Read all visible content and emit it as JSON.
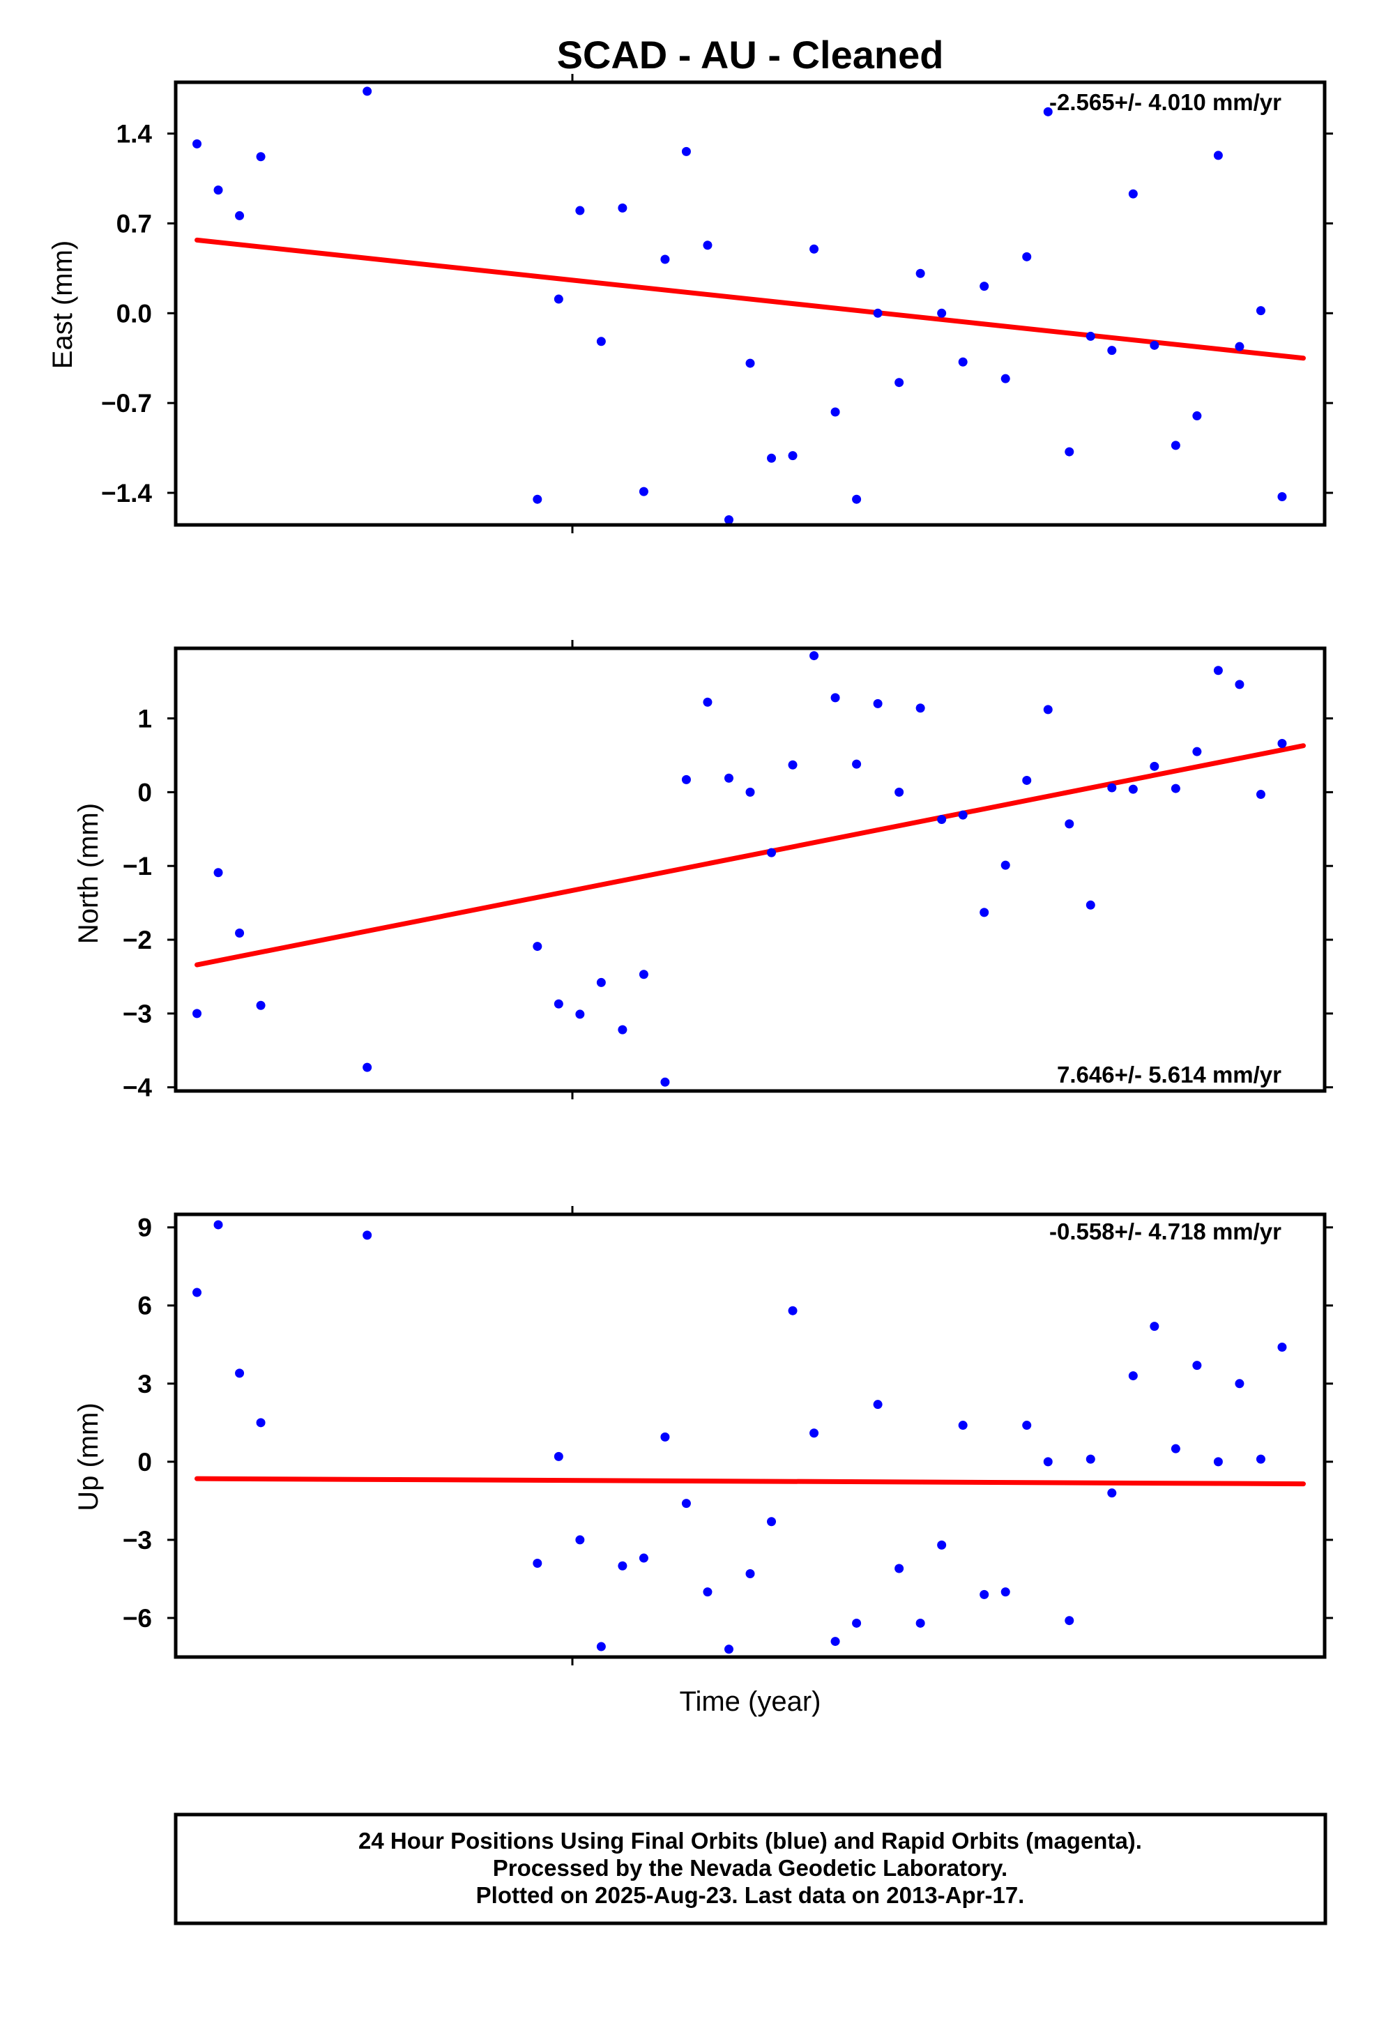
{
  "title": "SCAD  - AU - Cleaned",
  "xlabel": "Time (year)",
  "footer": {
    "line1": "24 Hour Positions Using Final Orbits (blue) and Rapid Orbits (magenta).",
    "line2": "Processed by the Nevada Geodetic Laboratory.",
    "line3": "Plotted on 2025-Aug-23. Last data on 2013-Apr-17."
  },
  "colors": {
    "points": "#0000ff",
    "trend": "#ff0000",
    "frame": "#000000"
  },
  "chart_data": [
    {
      "type": "scatter",
      "ylabel": "East (mm)",
      "rate_text": "-2.565+/- 4.010 mm/yr",
      "rate_position": "top-right",
      "ylim": [
        -1.65,
        1.8
      ],
      "yticks": [
        -1.4,
        -0.7,
        0.0,
        0.7,
        1.4
      ],
      "ytick_labels": [
        "−1.4",
        "−0.7",
        "0.0",
        "0.7",
        "1.4"
      ],
      "x": [
        1,
        2,
        3,
        4,
        9,
        17,
        18,
        19,
        20,
        21,
        22,
        23,
        24,
        25,
        26,
        27,
        28,
        29,
        30,
        31,
        32,
        33,
        34,
        35,
        36,
        37,
        38,
        39,
        40,
        41,
        42,
        43,
        44,
        45,
        46,
        47,
        48,
        49,
        50,
        51,
        52,
        53
      ],
      "values": [
        1.32,
        0.96,
        0.76,
        1.22,
        1.73,
        -1.45,
        0.11,
        0.8,
        -0.22,
        0.82,
        -1.39,
        0.42,
        1.26,
        0.53,
        -1.61,
        -0.39,
        -1.13,
        -1.11,
        0.5,
        -0.77,
        -1.45,
        0.0,
        -0.54,
        0.31,
        0.0,
        -0.38,
        0.21,
        -0.51,
        0.44,
        1.57,
        -1.08,
        -0.18,
        -0.29,
        0.93,
        -0.25,
        -1.03,
        -0.8,
        1.23,
        -0.26,
        0.02,
        -1.43,
        null
      ],
      "trend": {
        "x": [
          1,
          53
        ],
        "values": [
          0.57,
          -0.35
        ]
      }
    },
    {
      "type": "scatter",
      "ylabel": "North (mm)",
      "rate_text": "7.646+/- 5.614 mm/yr",
      "rate_position": "bottom-right",
      "ylim": [
        -4.05,
        1.95
      ],
      "yticks": [
        -4,
        -3,
        -2,
        -1,
        0,
        1
      ],
      "ytick_labels": [
        "−4",
        "−3",
        "−2",
        "−1",
        "0",
        "1"
      ],
      "x": [
        1,
        2,
        3,
        4,
        9,
        17,
        18,
        19,
        20,
        21,
        22,
        23,
        24,
        25,
        26,
        27,
        28,
        29,
        30,
        31,
        32,
        33,
        34,
        35,
        36,
        37,
        38,
        39,
        40,
        41,
        42,
        43,
        44,
        45,
        46,
        47,
        48,
        49,
        50,
        51,
        52
      ],
      "values": [
        -3.0,
        -1.09,
        -1.91,
        -2.89,
        -3.73,
        -2.09,
        -2.87,
        -3.01,
        -2.58,
        -3.22,
        -2.47,
        -3.93,
        0.17,
        1.22,
        0.19,
        0.0,
        -0.82,
        0.37,
        1.85,
        1.28,
        0.38,
        1.2,
        0.0,
        1.14,
        -0.37,
        -0.31,
        -1.63,
        -0.99,
        0.16,
        1.12,
        -0.43,
        -1.53,
        0.06,
        0.04,
        0.35,
        0.05,
        0.55,
        1.65,
        1.46,
        -0.03,
        0.66
      ],
      "trend": {
        "x": [
          1,
          53
        ],
        "values": [
          -2.34,
          0.63
        ]
      }
    },
    {
      "type": "scatter",
      "ylabel": "Up (mm)",
      "rate_text": "-0.558+/- 4.718 mm/yr",
      "rate_position": "top-right",
      "ylim": [
        -7.5,
        9.5
      ],
      "yticks": [
        -6,
        -3,
        0,
        3,
        6,
        9
      ],
      "ytick_labels": [
        "−6",
        "−3",
        "0",
        "3",
        "6",
        "9"
      ],
      "x": [
        1,
        2,
        3,
        4,
        9,
        17,
        18,
        19,
        20,
        21,
        22,
        23,
        24,
        25,
        26,
        27,
        28,
        29,
        30,
        31,
        32,
        33,
        34,
        35,
        36,
        37,
        38,
        39,
        40,
        41,
        42,
        43,
        44,
        45,
        46,
        47,
        48,
        49,
        50,
        51,
        52
      ],
      "values": [
        6.5,
        9.1,
        3.4,
        1.5,
        8.7,
        -3.9,
        0.2,
        -3.0,
        -7.1,
        -4.0,
        -3.7,
        0.95,
        -1.6,
        -5.0,
        -7.2,
        -4.3,
        -2.3,
        5.8,
        1.1,
        -6.9,
        -6.2,
        2.2,
        -4.1,
        -6.2,
        -3.2,
        1.4,
        -5.1,
        -5.0,
        1.4,
        0.0,
        -6.1,
        0.1,
        -1.2,
        3.3,
        5.2,
        0.5,
        3.7,
        0.0,
        3.0,
        0.1,
        4.4
      ],
      "trend": {
        "x": [
          1,
          53
        ],
        "values": [
          -0.65,
          -0.85
        ]
      }
    }
  ]
}
